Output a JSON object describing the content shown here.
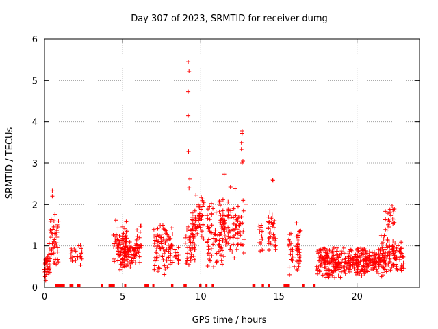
{
  "chart_data": {
    "type": "scatter",
    "title": "Day 307 of 2023, SRMTID for receiver dumg",
    "xlabel": "GPS time / hours",
    "ylabel": "SRMTID / TECUs",
    "xlim": [
      0,
      24
    ],
    "ylim": [
      0,
      6
    ],
    "xticks": [
      0,
      5,
      10,
      15,
      20
    ],
    "yticks": [
      0,
      1,
      2,
      3,
      4,
      5,
      6
    ],
    "grid": true,
    "marker": "plus",
    "color": "#ff0000",
    "clusters": [
      {
        "x0": 0.0,
        "x1": 0.35,
        "ymin": 0.05,
        "ymax": 0.85,
        "n": 40
      },
      {
        "x0": 0.3,
        "x1": 0.9,
        "ymin": 0.3,
        "ymax": 1.85,
        "n": 45
      },
      {
        "x0": 1.7,
        "x1": 2.4,
        "ymin": 0.5,
        "ymax": 1.1,
        "n": 22
      },
      {
        "x0": 4.4,
        "x1": 5.3,
        "ymin": 0.4,
        "ymax": 1.7,
        "n": 70
      },
      {
        "x0": 4.8,
        "x1": 5.9,
        "ymin": 0.35,
        "ymax": 1.2,
        "n": 90
      },
      {
        "x0": 5.9,
        "x1": 6.2,
        "ymin": 0.5,
        "ymax": 1.6,
        "n": 22
      },
      {
        "x0": 7.0,
        "x1": 8.2,
        "ymin": 0.3,
        "ymax": 1.65,
        "n": 90
      },
      {
        "x0": 8.3,
        "x1": 8.6,
        "ymin": 0.45,
        "ymax": 1.05,
        "n": 15
      },
      {
        "x0": 9.0,
        "x1": 9.7,
        "ymin": 0.35,
        "ymax": 1.65,
        "n": 45
      },
      {
        "x0": 9.4,
        "x1": 10.2,
        "ymin": 1.0,
        "ymax": 2.4,
        "n": 50
      },
      {
        "x0": 10.4,
        "x1": 11.4,
        "ymin": 0.3,
        "ymax": 2.3,
        "n": 70
      },
      {
        "x0": 11.2,
        "x1": 12.9,
        "ymin": 0.6,
        "ymax": 2.2,
        "n": 110
      },
      {
        "x0": 13.7,
        "x1": 14.0,
        "ymin": 0.75,
        "ymax": 1.6,
        "n": 15
      },
      {
        "x0": 14.3,
        "x1": 14.8,
        "ymin": 0.6,
        "ymax": 1.95,
        "n": 35
      },
      {
        "x0": 15.6,
        "x1": 16.4,
        "ymin": 0.15,
        "ymax": 1.6,
        "n": 55
      },
      {
        "x0": 17.4,
        "x1": 19.2,
        "ymin": 0.2,
        "ymax": 1.05,
        "n": 150
      },
      {
        "x0": 19.2,
        "x1": 21.5,
        "ymin": 0.25,
        "ymax": 1.0,
        "n": 200
      },
      {
        "x0": 21.5,
        "x1": 23.0,
        "ymin": 0.2,
        "ymax": 1.3,
        "n": 120
      },
      {
        "x0": 21.8,
        "x1": 22.4,
        "ymin": 1.2,
        "ymax": 2.0,
        "n": 20
      }
    ],
    "outliers": [
      {
        "x": 9.2,
        "y": 5.45
      },
      {
        "x": 9.25,
        "y": 5.22
      },
      {
        "x": 9.2,
        "y": 4.73
      },
      {
        "x": 9.2,
        "y": 4.15
      },
      {
        "x": 9.22,
        "y": 3.28
      },
      {
        "x": 9.3,
        "y": 2.62
      },
      {
        "x": 9.25,
        "y": 2.4
      },
      {
        "x": 0.5,
        "y": 2.33
      },
      {
        "x": 0.5,
        "y": 2.2
      },
      {
        "x": 12.65,
        "y": 3.78
      },
      {
        "x": 12.65,
        "y": 3.72
      },
      {
        "x": 12.6,
        "y": 3.5
      },
      {
        "x": 12.6,
        "y": 3.33
      },
      {
        "x": 12.7,
        "y": 3.05
      },
      {
        "x": 12.65,
        "y": 3.0
      },
      {
        "x": 11.5,
        "y": 2.73
      },
      {
        "x": 14.6,
        "y": 2.6
      },
      {
        "x": 14.62,
        "y": 2.58
      },
      {
        "x": 11.9,
        "y": 2.42
      },
      {
        "x": 12.2,
        "y": 2.38
      },
      {
        "x": 22.25,
        "y": 1.97
      },
      {
        "x": 22.3,
        "y": 1.88
      }
    ],
    "zero_markers": [
      [
        0.7,
        1.3
      ],
      [
        1.6,
        1.85
      ],
      [
        2.1,
        2.3
      ],
      [
        3.6,
        3.7
      ],
      [
        4.1,
        4.5
      ],
      [
        5.1,
        5.2
      ],
      [
        6.4,
        6.7
      ],
      [
        6.9,
        7.0
      ],
      [
        8.1,
        8.25
      ],
      [
        8.9,
        9.1
      ],
      [
        9.9,
        10.05
      ],
      [
        10.3,
        10.35
      ],
      [
        10.7,
        10.85
      ],
      [
        13.3,
        13.5
      ],
      [
        13.9,
        14.05
      ],
      [
        14.3,
        14.4
      ],
      [
        15.3,
        15.7
      ],
      [
        16.5,
        16.6
      ],
      [
        17.2,
        17.35
      ]
    ]
  }
}
